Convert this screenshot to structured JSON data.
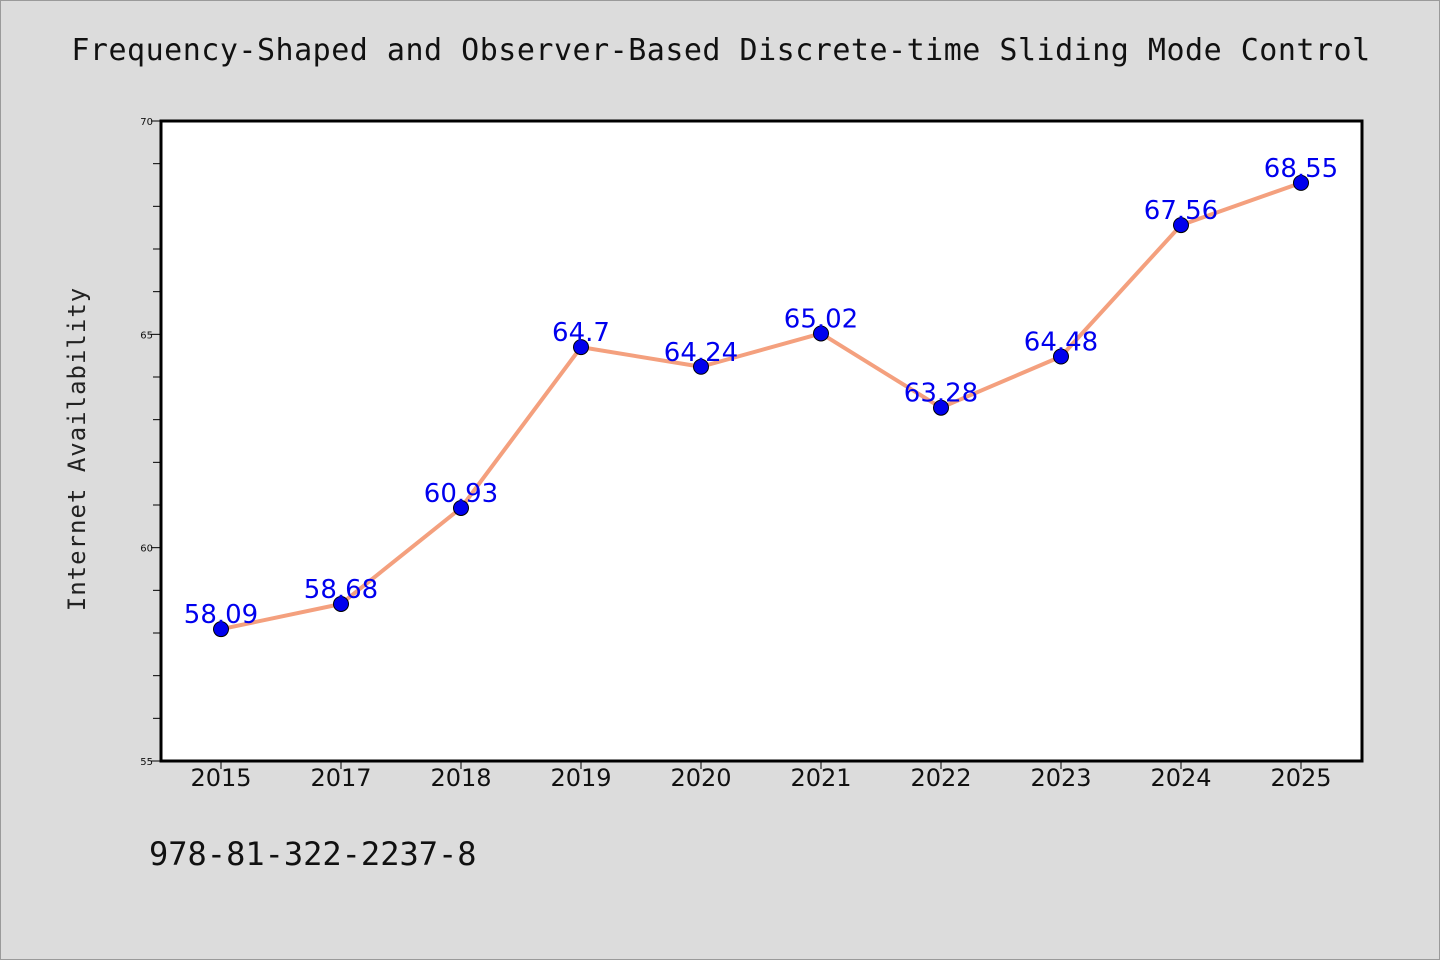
{
  "title": "Frequency-Shaped and Observer-Based Discrete-time Sliding Mode Control",
  "footer_text": "978-81-322-2237-8",
  "chart_data": {
    "type": "line",
    "title": "Frequency-Shaped and Observer-Based Discrete-time Sliding Mode Control",
    "xlabel": "",
    "ylabel": "Internet Availability",
    "categories": [
      "2015",
      "2017",
      "2018",
      "2019",
      "2020",
      "2021",
      "2022",
      "2023",
      "2024",
      "2025"
    ],
    "values": [
      58.09,
      58.68,
      60.93,
      64.7,
      64.24,
      65.02,
      63.28,
      64.48,
      67.56,
      68.55
    ],
    "data_labels": [
      "58.09",
      "58.68",
      "60.93",
      "64.7",
      "64.24",
      "65.02",
      "63.28",
      "64.48",
      "67.56",
      "68.55"
    ],
    "ylim": [
      55,
      70
    ],
    "yticks": [
      55,
      60,
      65,
      70
    ],
    "ytick_labels": [
      "55",
      "60",
      "65",
      "70"
    ],
    "y_minor_step": 1,
    "grid": false,
    "legend": "none",
    "line_color": "#f4a07e",
    "marker_color": "#0000ee",
    "label_color": "#0000ee",
    "plot_background": "#ffffff",
    "page_background": "#dcdcdc"
  }
}
